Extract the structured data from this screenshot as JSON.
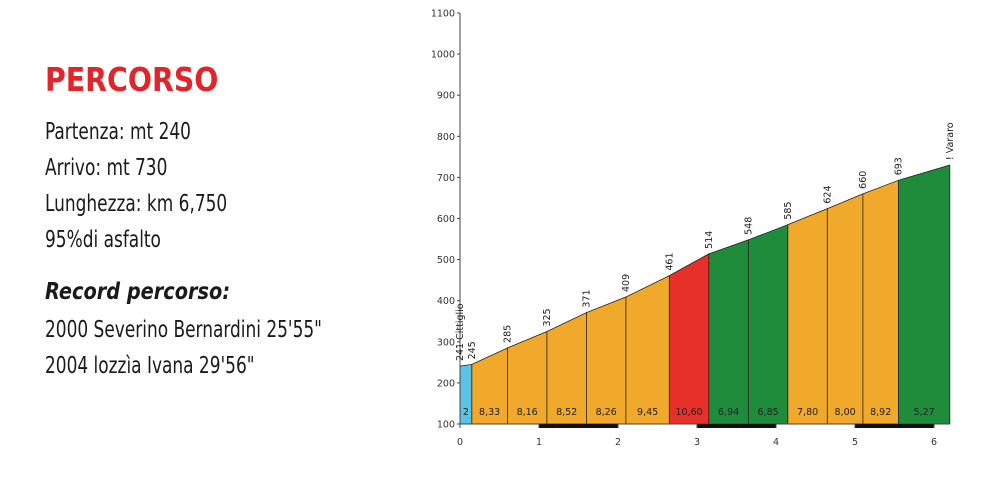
{
  "info": {
    "title": "PERCORSO",
    "start": "Partenza: mt 240",
    "finish": "Arrivo: mt 730",
    "length": "Lunghezza: km 6,750",
    "asphalt": "95%di asfalto",
    "record_title": "Record percorso:",
    "records": [
      "2000 Severino Bernardini 25'55\"",
      "2004 lozzìa Ivana 29'56\""
    ]
  },
  "chart_data": {
    "type": "area",
    "x_ticks": [
      "0",
      "1",
      "2",
      "3",
      "4",
      "5",
      "6"
    ],
    "y_ticks": [
      "100",
      "200",
      "300",
      "400",
      "500",
      "600",
      "700",
      "800",
      "900",
      "1000",
      "1100"
    ],
    "xlim": [
      0,
      6.2
    ],
    "ylim": [
      100,
      1100
    ],
    "profile": [
      {
        "x": 0.0,
        "y": 241
      },
      {
        "x": 0.15,
        "y": 245
      },
      {
        "x": 0.6,
        "y": 285
      },
      {
        "x": 1.1,
        "y": 325
      },
      {
        "x": 1.6,
        "y": 371
      },
      {
        "x": 2.1,
        "y": 409
      },
      {
        "x": 2.65,
        "y": 461
      },
      {
        "x": 3.15,
        "y": 514
      },
      {
        "x": 3.65,
        "y": 548
      },
      {
        "x": 4.15,
        "y": 585
      },
      {
        "x": 4.65,
        "y": 624
      },
      {
        "x": 5.1,
        "y": 660
      },
      {
        "x": 5.55,
        "y": 693
      },
      {
        "x": 6.2,
        "y": 730
      }
    ],
    "point_labels": [
      "241 Cittiglio",
      "245",
      "285",
      "325",
      "371",
      "409",
      "461",
      "514",
      "548",
      "585",
      "624",
      "660",
      "693",
      "! Vararo"
    ],
    "segments": [
      {
        "from": 0.0,
        "to": 0.15,
        "grade": "2",
        "color": "#5bc4e6"
      },
      {
        "from": 0.15,
        "to": 0.6,
        "grade": "8,33",
        "color": "#f0a92a"
      },
      {
        "from": 0.6,
        "to": 1.1,
        "grade": "8,16",
        "color": "#f0a92a"
      },
      {
        "from": 1.1,
        "to": 1.6,
        "grade": "8,52",
        "color": "#f0a92a"
      },
      {
        "from": 1.6,
        "to": 2.1,
        "grade": "8,26",
        "color": "#f0a92a"
      },
      {
        "from": 2.1,
        "to": 2.65,
        "grade": "9,45",
        "color": "#f0a92a"
      },
      {
        "from": 2.65,
        "to": 3.15,
        "grade": "10,60",
        "color": "#e8302a"
      },
      {
        "from": 3.15,
        "to": 3.65,
        "grade": "6,94",
        "color": "#1f8c3c"
      },
      {
        "from": 3.65,
        "to": 4.15,
        "grade": "6,85",
        "color": "#1f8c3c"
      },
      {
        "from": 4.15,
        "to": 4.65,
        "grade": "7,80",
        "color": "#f0a92a"
      },
      {
        "from": 4.65,
        "to": 5.1,
        "grade": "8,00",
        "color": "#f0a92a"
      },
      {
        "from": 5.1,
        "to": 5.55,
        "grade": "8,92",
        "color": "#f0a92a"
      },
      {
        "from": 5.55,
        "to": 6.2,
        "grade": "5,27",
        "color": "#1f8c3c"
      }
    ],
    "km_bands": [
      [
        1,
        2
      ],
      [
        3,
        4
      ],
      [
        5,
        6
      ]
    ],
    "grid": false
  }
}
